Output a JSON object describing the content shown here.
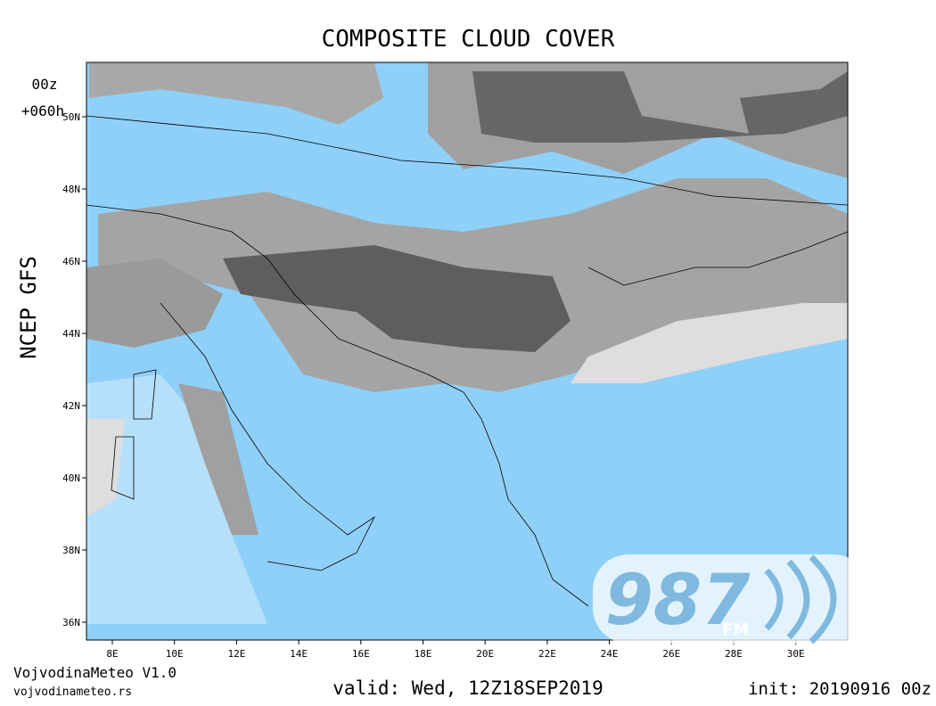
{
  "header": {
    "title": "COMPOSITE CLOUD COVER",
    "model": "NCEP GFS",
    "run": "00z",
    "forecast_hour": "+060h"
  },
  "map": {
    "lat_ticks": [
      "50N",
      "48N",
      "46N",
      "44N",
      "42N",
      "40N",
      "38N",
      "36N"
    ],
    "lon_ticks": [
      "8E",
      "10E",
      "12E",
      "14E",
      "16E",
      "18E",
      "20E",
      "22E",
      "24E",
      "26E",
      "28E",
      "30E"
    ]
  },
  "footer": {
    "brand": "VojvodinaMeteo V1.0",
    "site": "vojvodinameteo.rs",
    "valid": "valid: Wed, 12Z18SEP2019",
    "init": "init: 20190916 00z"
  },
  "logo": {
    "number": "987",
    "suffix": "FM"
  }
}
